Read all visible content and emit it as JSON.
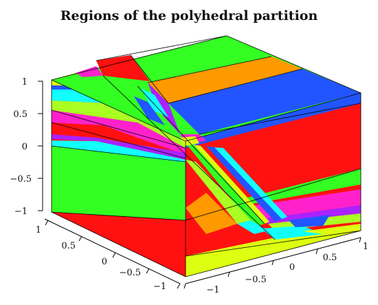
{
  "title": "Regions of the polyhedral partition",
  "axes": {
    "z_ticks": [
      "1",
      "0.5",
      "0",
      "−0.5",
      "−1"
    ],
    "x_ticks": [
      "−1",
      "−0.5",
      "0",
      "0.5",
      "1"
    ],
    "y_ticks": [
      "1",
      "0.5",
      "0",
      "−0.5",
      "−1"
    ]
  },
  "colors": {
    "red": "#ff1111",
    "green": "#33ff22",
    "blue": "#2255ff",
    "cyan": "#11ffff",
    "magenta": "#ff22cc",
    "orange": "#ff9900",
    "yellow": "#ddff11",
    "purple": "#aa22ff",
    "lime": "#aaff22",
    "edge": "#000000"
  }
}
